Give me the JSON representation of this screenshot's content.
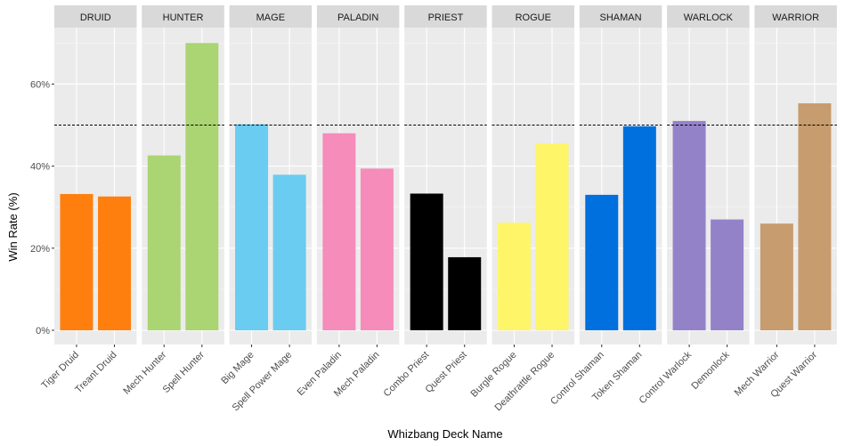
{
  "chart_data": {
    "type": "bar",
    "xlabel": "Whizbang Deck Name",
    "ylabel": "Win Rate (%)",
    "ylim": [
      -3,
      72
    ],
    "yticks": [
      0,
      20,
      40,
      60
    ],
    "ytick_labels": [
      "0%",
      "20%",
      "40%",
      "60%"
    ],
    "reference_line": {
      "value": 50,
      "style": "dashed"
    },
    "facets": [
      {
        "name": "DRUID",
        "color": "#FF7F0E",
        "decks": [
          "Tiger Druid",
          "Treant Druid"
        ],
        "values": [
          33.2,
          32.6
        ]
      },
      {
        "name": "HUNTER",
        "color": "#ABD473",
        "decks": [
          "Mech Hunter",
          "Spell Hunter"
        ],
        "values": [
          42.6,
          70.0
        ]
      },
      {
        "name": "MAGE",
        "color": "#69CCF0",
        "decks": [
          "Big Mage",
          "Spell Power Mage"
        ],
        "values": [
          50.2,
          37.9
        ]
      },
      {
        "name": "PALADIN",
        "color": "#F58CBA",
        "decks": [
          "Even Paladin",
          "Mech Paladin"
        ],
        "values": [
          48.0,
          39.4
        ]
      },
      {
        "name": "PRIEST",
        "color": "#000000",
        "decks": [
          "Combo Priest",
          "Quest Priest"
        ],
        "values": [
          33.3,
          17.8
        ]
      },
      {
        "name": "ROGUE",
        "color": "#FFF569",
        "decks": [
          "Burgle Rogue",
          "Deathrattle Rogue"
        ],
        "values": [
          26.2,
          45.5
        ]
      },
      {
        "name": "SHAMAN",
        "color": "#0070DE",
        "decks": [
          "Control Shaman",
          "Token Shaman"
        ],
        "values": [
          33.0,
          49.7
        ]
      },
      {
        "name": "WARLOCK",
        "color": "#9482C9",
        "decks": [
          "Control Warlock",
          "Demonlock"
        ],
        "values": [
          51.0,
          27.0
        ]
      },
      {
        "name": "WARRIOR",
        "color": "#C79C6E",
        "decks": [
          "Mech Warrior",
          "Quest Warrior"
        ],
        "values": [
          26.0,
          55.3
        ]
      }
    ]
  }
}
